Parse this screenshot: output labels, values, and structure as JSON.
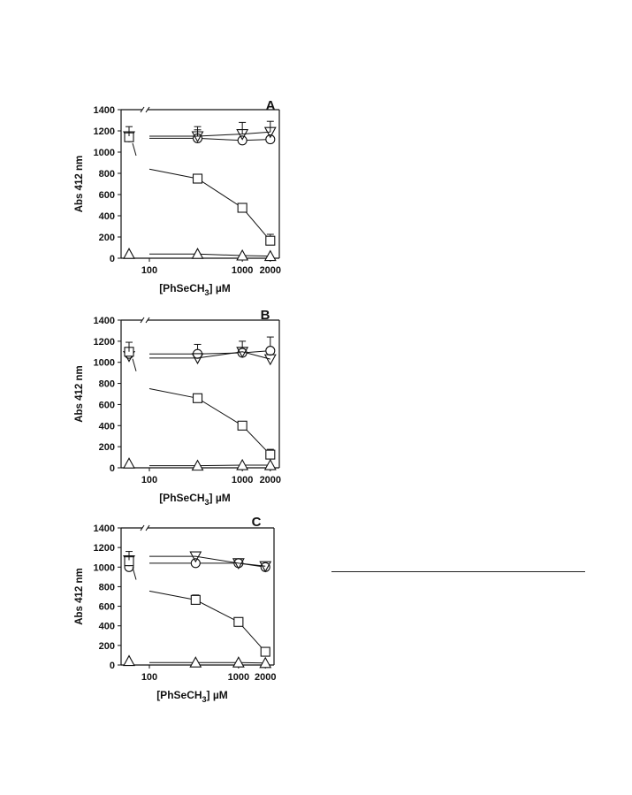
{
  "figure": {
    "colors": {
      "ink": "#111111",
      "background": "#ffffff"
    }
  },
  "chart_data": [
    {
      "type": "line",
      "panel_label": "A",
      "ylabel": "Abs 412 nm",
      "xlabel_main": "[PhSeCH",
      "xlabel_sub": "3",
      "xlabel_unit": "] µM",
      "x_scale": "log",
      "xlim": [
        50,
        2500
      ],
      "ylim": [
        0,
        1400
      ],
      "yticks": [
        "0",
        "200",
        "400",
        "600",
        "800",
        "1000",
        "1200",
        "1400"
      ],
      "xticks": [
        "100",
        "1000",
        "2000"
      ],
      "axis_break": "y-axis top and left of x=100 (control point at 0 µM)",
      "series": [
        {
          "marker": "circle",
          "control": 1140,
          "x": [
            330,
            1000,
            2000
          ],
          "y": [
            1130,
            1110,
            1120
          ],
          "err": [
            80,
            0,
            0
          ]
        },
        {
          "marker": "inverted-triangle",
          "control": 1150,
          "x": [
            330,
            1000,
            2000
          ],
          "y": [
            1150,
            1170,
            1190
          ],
          "err": [
            90,
            110,
            100
          ]
        },
        {
          "marker": "square",
          "control": 1140,
          "x": [
            330,
            1000,
            2000
          ],
          "y": [
            750,
            475,
            165
          ],
          "err": [
            0,
            0,
            60
          ]
        },
        {
          "marker": "triangle",
          "control": 40,
          "x": [
            330,
            1000,
            2000
          ],
          "y": [
            40,
            25,
            20
          ],
          "err": [
            0,
            0,
            0
          ]
        }
      ]
    },
    {
      "type": "line",
      "panel_label": "B",
      "ylabel": "Abs 412 nm",
      "xlabel_main": "[PhSeCH",
      "xlabel_sub": "3",
      "xlabel_unit": "] µM",
      "x_scale": "log",
      "xlim": [
        50,
        2500
      ],
      "ylim": [
        0,
        1400
      ],
      "yticks": [
        "0",
        "200",
        "400",
        "600",
        "800",
        "1000",
        "1200",
        "1400"
      ],
      "xticks": [
        "100",
        "1000",
        "2000"
      ],
      "axis_break": "y-axis top and left of x=100 (control point at 0 µM)",
      "series": [
        {
          "marker": "circle",
          "control": 1080,
          "x": [
            330,
            1000,
            2000
          ],
          "y": [
            1080,
            1090,
            1110
          ],
          "err": [
            90,
            110,
            130
          ]
        },
        {
          "marker": "inverted-triangle",
          "control": 1060,
          "x": [
            330,
            1000,
            2000
          ],
          "y": [
            1040,
            1100,
            1030
          ],
          "err": [
            0,
            0,
            0
          ]
        },
        {
          "marker": "square",
          "control": 1100,
          "x": [
            330,
            1000,
            2000
          ],
          "y": [
            660,
            400,
            125
          ],
          "err": [
            0,
            0,
            50
          ]
        },
        {
          "marker": "triangle",
          "control": 40,
          "x": [
            330,
            1000,
            2000
          ],
          "y": [
            20,
            25,
            25
          ],
          "err": [
            0,
            0,
            0
          ]
        }
      ]
    },
    {
      "type": "line",
      "panel_label": "C",
      "ylabel": "Abs 412 nm",
      "xlabel_main": "[PhSeCH",
      "xlabel_sub": "3",
      "xlabel_unit": "] µM",
      "x_scale": "log",
      "xlim": [
        50,
        2500
      ],
      "ylim": [
        0,
        1400
      ],
      "yticks": [
        "0",
        "200",
        "400",
        "600",
        "800",
        "1000",
        "1200",
        "1400"
      ],
      "xticks": [
        "100",
        "1000",
        "2000"
      ],
      "axis_break": "y-axis top and left of x=100 (control point at 0 µM)",
      "series": [
        {
          "marker": "circle",
          "control": 1000,
          "x": [
            330,
            1000,
            2000
          ],
          "y": [
            1040,
            1040,
            1000
          ],
          "err": [
            0,
            0,
            0
          ]
        },
        {
          "marker": "inverted-triangle",
          "control": 1070,
          "x": [
            330,
            1000,
            2000
          ],
          "y": [
            1110,
            1040,
            1010
          ],
          "err": [
            0,
            0,
            0
          ]
        },
        {
          "marker": "square",
          "control": 1060,
          "x": [
            330,
            1000,
            2000
          ],
          "y": [
            665,
            440,
            135
          ],
          "err": [
            50,
            0,
            0
          ]
        },
        {
          "marker": "triangle",
          "control": 40,
          "x": [
            330,
            1000,
            2000
          ],
          "y": [
            25,
            25,
            20
          ],
          "err": [
            0,
            0,
            0
          ]
        }
      ]
    }
  ]
}
